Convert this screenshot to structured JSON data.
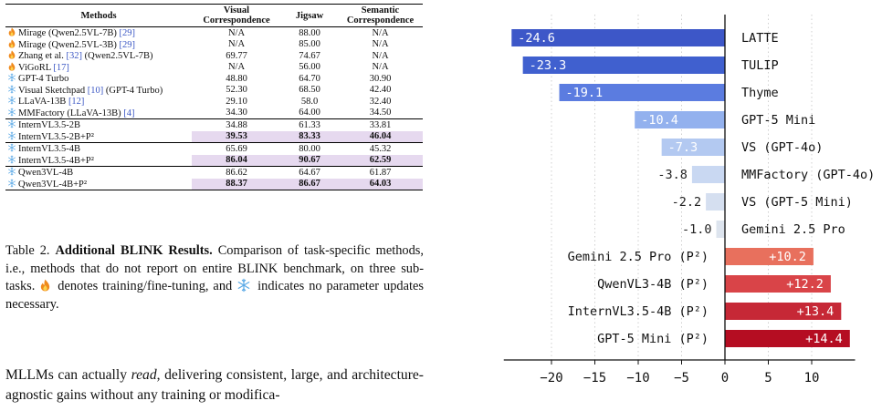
{
  "table": {
    "headers": [
      "Methods",
      "Visual\nCorrespondence",
      "Jigsaw",
      "Semantic\nCorrespondence"
    ],
    "rows": [
      {
        "icon": "fire-icon",
        "name": "Mirage (Qwen2.5VL-7B) ",
        "cite": "[29]",
        "tail": "",
        "vc": "N/A",
        "jig": "88.00",
        "sc": "N/A",
        "group": 1,
        "hl": false
      },
      {
        "icon": "fire-icon",
        "name": "Mirage (Qwen2.5VL-3B) ",
        "cite": "[29]",
        "tail": "",
        "vc": "N/A",
        "jig": "85.00",
        "sc": "N/A",
        "group": 1,
        "hl": false
      },
      {
        "icon": "fire-icon",
        "name": "Zhang et al. ",
        "cite": "[32]",
        "tail": " (Qwen2.5VL-7B)",
        "vc": "69.77",
        "jig": "74.67",
        "sc": "N/A",
        "group": 1,
        "hl": false
      },
      {
        "icon": "fire-icon",
        "name": "ViGoRL ",
        "cite": "[17]",
        "tail": "",
        "vc": "N/A",
        "jig": "56.00",
        "sc": "N/A",
        "group": 1,
        "hl": false
      },
      {
        "icon": "snowflake-icon",
        "name": "GPT-4 Turbo",
        "cite": "",
        "tail": "",
        "vc": "48.80",
        "jig": "64.70",
        "sc": "30.90",
        "group": 1,
        "hl": false
      },
      {
        "icon": "snowflake-icon",
        "name": "Visual Sketchpad ",
        "cite": "[10]",
        "tail": " (GPT-4 Turbo)",
        "vc": "52.30",
        "jig": "68.50",
        "sc": "42.40",
        "group": 1,
        "hl": false
      },
      {
        "icon": "snowflake-icon",
        "name": "LLaVA-13B ",
        "cite": "[12]",
        "tail": "",
        "vc": "29.10",
        "jig": "58.0",
        "sc": "32.40",
        "group": 1,
        "hl": false
      },
      {
        "icon": "snowflake-icon",
        "name": "MMFactory (LLaVA-13B) ",
        "cite": "[4]",
        "tail": "",
        "vc": "34.30",
        "jig": "64.00",
        "sc": "34.50",
        "group": 1,
        "hl": false
      },
      {
        "icon": "snowflake-icon",
        "name": "InternVL3.5-2B",
        "cite": "",
        "tail": "",
        "vc": "34.88",
        "jig": "61.33",
        "sc": "33.81",
        "group": 2,
        "hl": false
      },
      {
        "icon": "snowflake-icon",
        "name": "InternVL3.5-2B+P²",
        "cite": "",
        "tail": "",
        "vc": "39.53",
        "jig": "83.33",
        "sc": "46.04",
        "group": 2,
        "hl": true
      },
      {
        "icon": "snowflake-icon",
        "name": "InternVL3.5-4B",
        "cite": "",
        "tail": "",
        "vc": "65.69",
        "jig": "80.00",
        "sc": "45.32",
        "group": 3,
        "hl": false
      },
      {
        "icon": "snowflake-icon",
        "name": "InternVL3.5-4B+P²",
        "cite": "",
        "tail": "",
        "vc": "86.04",
        "jig": "90.67",
        "sc": "62.59",
        "group": 3,
        "hl": true
      },
      {
        "icon": "snowflake-icon",
        "name": "Qwen3VL-4B",
        "cite": "",
        "tail": "",
        "vc": "86.62",
        "jig": "64.67",
        "sc": "61.87",
        "group": 4,
        "hl": false
      },
      {
        "icon": "snowflake-icon",
        "name": "Qwen3VL-4B+P²",
        "cite": "",
        "tail": "",
        "vc": "88.37",
        "jig": "86.67",
        "sc": "64.03",
        "group": 4,
        "hl": true
      }
    ]
  },
  "caption": {
    "label": "Table 2. ",
    "heading": "Additional BLINK Results.",
    "text1": " Comparison of task-specific methods, i.e., methods that do not report on entire BLINK benchmark, on three sub-tasks. ",
    "text2": " denotes training/fine-tuning, and ",
    "text3": " indicates no parameter updates necessary."
  },
  "body_text": {
    "part1": "MLLMs can actually ",
    "emph": "read",
    "part2": ", delivering consistent, large, and architecture-agnostic gains without any training or modifica-"
  },
  "colors": {
    "negative": [
      "#3d57c8",
      "#4060cf",
      "#5b7ce0",
      "#93b1ee",
      "#b3c9f1",
      "#c9d8f2",
      "#d5dff0",
      "#dde4ee"
    ],
    "positive": [
      "#e8705d",
      "#d94448",
      "#c62836",
      "#b50d22"
    ],
    "highlight": "#e6d9ef",
    "cite": "#3b57c4"
  },
  "chart_data": {
    "type": "bar",
    "orientation": "horizontal",
    "categories": [
      "LATTE",
      "TULIP",
      "Thyme",
      "GPT-5 Mini",
      "VS (GPT-4o)",
      "MMFactory (GPT-4o)",
      "VS (GPT-5 Mini)",
      "Gemini 2.5 Pro",
      "Gemini 2.5 Pro (P²)",
      "QwenVL3-4B (P²)",
      "InternVL3.5-4B (P²)",
      "GPT-5 Mini (P²)"
    ],
    "values": [
      -24.6,
      -23.3,
      -19.1,
      -10.4,
      -7.3,
      -3.8,
      -2.2,
      -1.0,
      10.2,
      12.2,
      13.4,
      14.4
    ],
    "labels": [
      "-24.6",
      "-23.3",
      "-19.1",
      "-10.4",
      "-7.3",
      "-3.8",
      "-2.2",
      "-1.0",
      "+10.2",
      "+12.2",
      "+13.4",
      "+14.4"
    ],
    "xlim": [
      -25.5,
      15
    ],
    "xticks": [
      -20,
      -15,
      -10,
      -5,
      0,
      5,
      10
    ],
    "xticklabels": [
      "−20",
      "−15",
      "−10",
      "−5",
      "0",
      "5",
      "10"
    ],
    "grid": "vertical dotted",
    "title": "",
    "xlabel": "",
    "ylabel": ""
  }
}
